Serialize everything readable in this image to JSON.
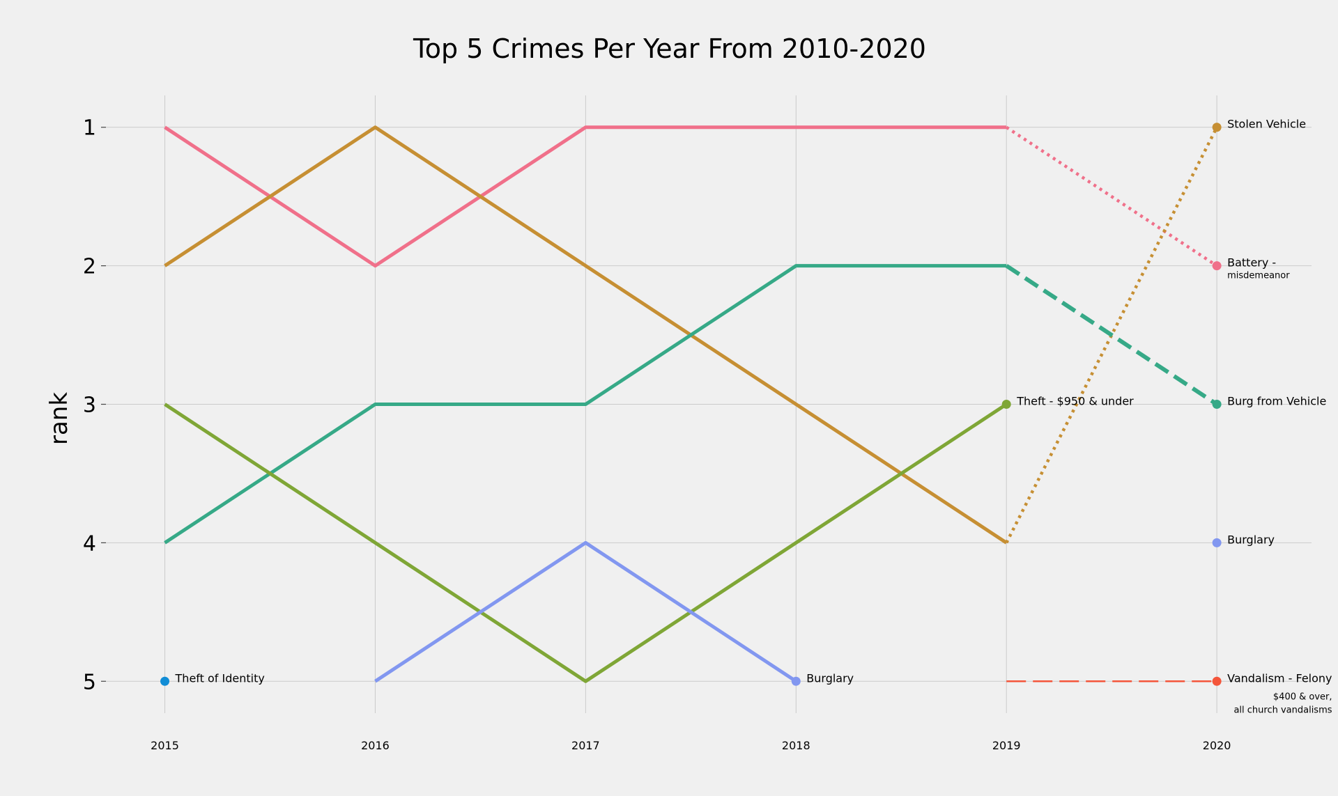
{
  "chart_data": {
    "type": "line",
    "title": "Top 5 Crimes Per Year From 2010-2020",
    "ylabel": "rank",
    "xlabel": "",
    "x": [
      2015,
      2016,
      2017,
      2018,
      2019,
      2020
    ],
    "xlim": [
      2014.72,
      2020.45
    ],
    "ylim": [
      5.23,
      0.77
    ],
    "y_inverted": true,
    "y_ticks": [
      "1",
      "2",
      "3",
      "4",
      "5"
    ],
    "grid": true,
    "legend": "none",
    "series": [
      {
        "key": "battery",
        "color": "#f0708a",
        "solid": [
          [
            2015,
            1
          ],
          [
            2016,
            2
          ],
          [
            2017,
            1
          ],
          [
            2018,
            1
          ],
          [
            2019,
            1
          ]
        ],
        "projected": [
          [
            2019,
            1
          ],
          [
            2020,
            2
          ]
        ],
        "projected_style": "dotted",
        "end_marker": [
          2020,
          2
        ],
        "label": "Battery -",
        "sublabel": "misdemeanor"
      },
      {
        "key": "stolen-vehicle",
        "color": "#c68f33",
        "solid": [
          [
            2015,
            2
          ],
          [
            2016,
            1
          ],
          [
            2017,
            2
          ],
          [
            2018,
            3
          ],
          [
            2019,
            4
          ]
        ],
        "projected": [
          [
            2019,
            4
          ],
          [
            2020,
            1
          ]
        ],
        "projected_style": "dotted",
        "end_marker": [
          2020,
          1
        ],
        "label": "Stolen Vehicle"
      },
      {
        "key": "burg-from-vehicle",
        "color": "#36a987",
        "solid": [
          [
            2015,
            4
          ],
          [
            2016,
            3
          ],
          [
            2017,
            3
          ],
          [
            2018,
            2
          ],
          [
            2019,
            2
          ]
        ],
        "projected": [
          [
            2019,
            2
          ],
          [
            2020,
            3
          ]
        ],
        "projected_style": "dashed",
        "end_marker": [
          2020,
          3
        ],
        "label": "Burg from Vehicle"
      },
      {
        "key": "theft-950-under",
        "color": "#7fa636",
        "solid": [
          [
            2015,
            3
          ],
          [
            2016,
            4
          ],
          [
            2017,
            5
          ],
          [
            2018,
            4
          ],
          [
            2019,
            3
          ]
        ],
        "end_marker": [
          2019,
          3
        ],
        "label": "Theft - $950 & under"
      },
      {
        "key": "burglary-2018",
        "color": "#8297f0",
        "solid": [
          [
            2016,
            5
          ],
          [
            2017,
            4
          ],
          [
            2018,
            5
          ]
        ],
        "end_marker": [
          2018,
          5
        ],
        "label": "Burglary"
      },
      {
        "key": "burglary-2020",
        "color": "#8297f0",
        "solid": [],
        "end_marker": [
          2020,
          4
        ],
        "label": "Burglary"
      },
      {
        "key": "theft-of-identity",
        "color": "#118dd6",
        "solid": [],
        "end_marker": [
          2015,
          5
        ],
        "label": "Theft of Identity"
      },
      {
        "key": "vandalism-felony",
        "color": "#f4553a",
        "solid": [],
        "projected": [
          [
            2019,
            5
          ],
          [
            2020,
            5
          ]
        ],
        "projected_style": "longdash",
        "end_marker": [
          2020,
          5
        ],
        "label": "Vandalism - Felony",
        "sublabel": "$400 & over,",
        "sublabel2": "all church vandalisms"
      }
    ]
  }
}
